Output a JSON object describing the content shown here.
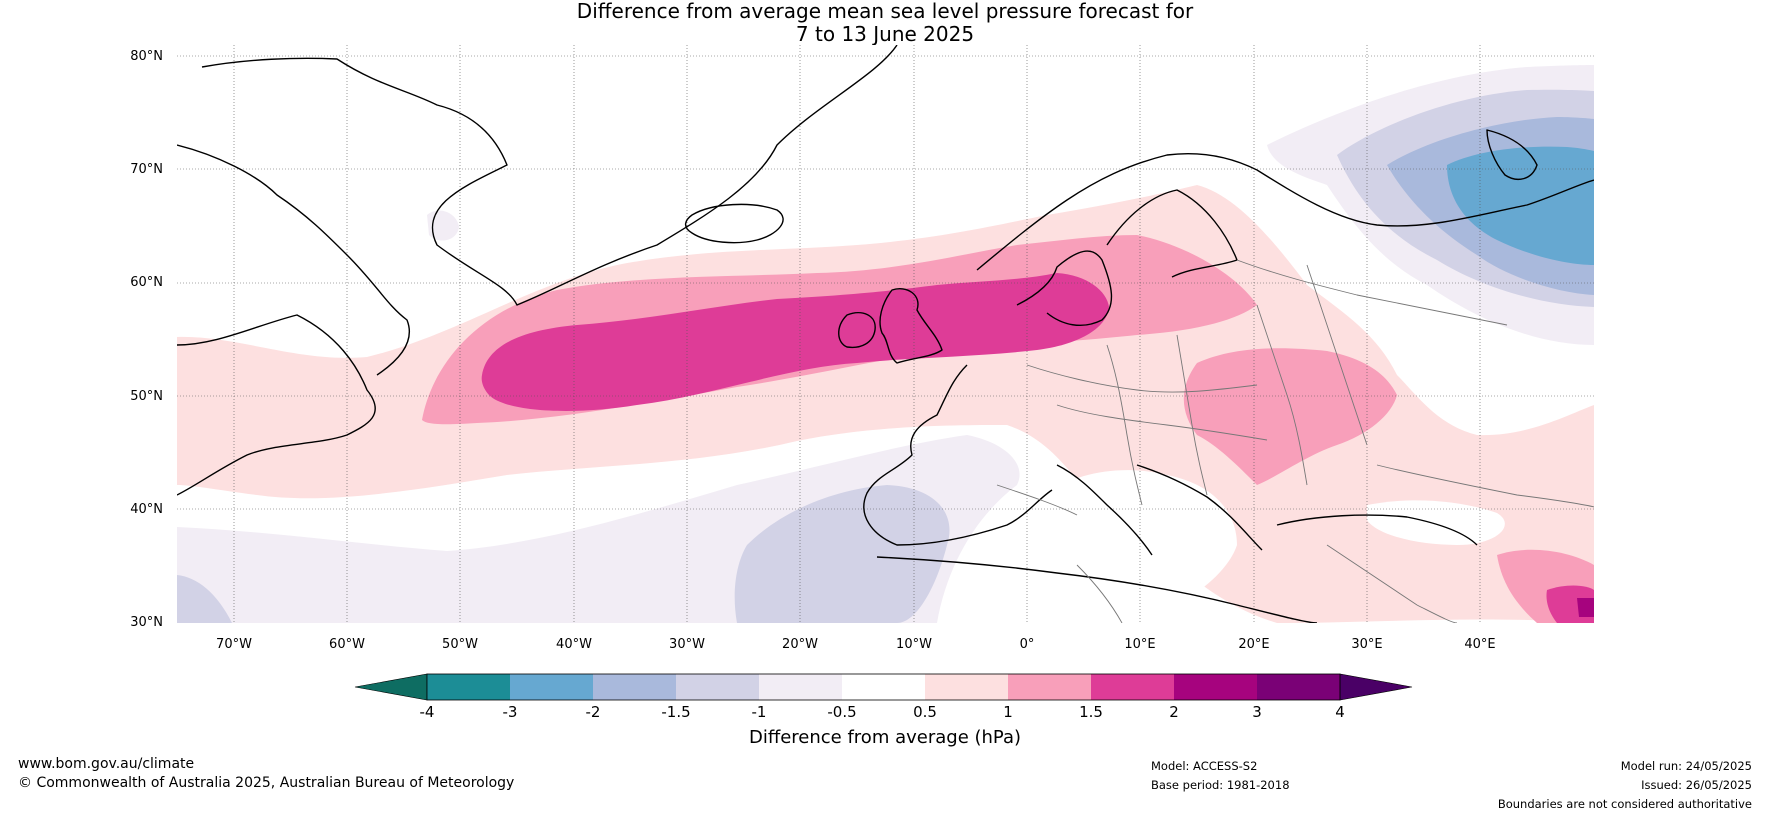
{
  "title": {
    "line1": "Difference from average mean sea level pressure forecast for",
    "line2": "7 to 13 June 2025"
  },
  "map": {
    "lat_labels": [
      "80°N",
      "70°N",
      "60°N",
      "50°N",
      "40°N",
      "30°N"
    ],
    "lon_labels": [
      "70°W",
      "60°W",
      "50°W",
      "40°W",
      "30°W",
      "20°W",
      "10°W",
      "0°",
      "10°E",
      "20°E",
      "30°E",
      "40°E"
    ],
    "lat_range": [
      30,
      81
    ],
    "lon_range": [
      -75,
      50
    ],
    "regions": [
      {
        "name": "positive-anomaly-north-atlantic",
        "category": "0.5 to 1",
        "center": [
          -25,
          52
        ]
      },
      {
        "name": "positive-anomaly-british-isles",
        "category": "1.5 to 2",
        "center": [
          -3,
          56
        ]
      },
      {
        "name": "positive-anomaly-central-europe",
        "category": "1 to 1.5",
        "center": [
          20,
          47
        ]
      },
      {
        "name": "negative-anomaly-barents",
        "category": "-2 to -3",
        "center": [
          47,
          67
        ]
      },
      {
        "name": "negative-anomaly-subtropical-atlantic",
        "category": "-1 to -1.5",
        "center": [
          -20,
          33
        ]
      }
    ]
  },
  "colorbar": {
    "ticks": [
      "-4",
      "-3",
      "-2",
      "-1.5",
      "-1",
      "-0.5",
      "0.5",
      "1",
      "1.5",
      "2",
      "3",
      "4"
    ],
    "colors": [
      "#1c8d96",
      "#66a8d1",
      "#a9b9dc",
      "#d2d2e6",
      "#f2edf5",
      "#ffffff",
      "#fde0e0",
      "#f89fba",
      "#de3c97",
      "#a6037e",
      "#7a0176"
    ],
    "under_color": "#0e6d62",
    "over_color": "#4a0066",
    "label": "Difference from average (hPa)"
  },
  "footer": {
    "website": "www.bom.gov.au/climate",
    "copyright": "© Commonwealth of Australia 2025, Australian Bureau of Meteorology",
    "model": "Model: ACCESS-S2",
    "base_period": "Base period: 1981-2018",
    "model_run": "Model run: 24/05/2025",
    "issued": "Issued: 26/05/2025",
    "disclaimer": "Boundaries are not considered authoritative"
  }
}
